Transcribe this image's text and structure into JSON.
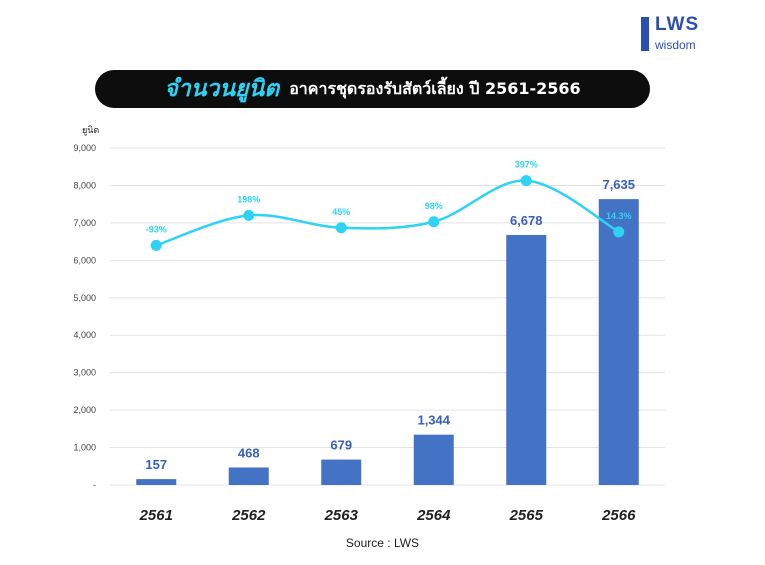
{
  "logo": {
    "main": "LWS",
    "sub": "wisdom"
  },
  "title": {
    "main": "จำนวนยูนิต",
    "sub": "อาคารชุดรองรับสัตว์เลี้ยง ปี 2561-2566"
  },
  "source": "Source : LWS",
  "colors": {
    "bar": "#4472c4",
    "line": "#2dd3f5",
    "bar_label": "#3a5fb8",
    "pct_label": "#2dd3f5"
  },
  "chart_data": {
    "type": "bar",
    "ylabel": "ยูนิต",
    "ylim": [
      0,
      9000
    ],
    "yticks": [
      {
        "v": 0,
        "label": "-"
      },
      {
        "v": 1000,
        "label": "1,000"
      },
      {
        "v": 2000,
        "label": "2,000"
      },
      {
        "v": 3000,
        "label": "3,000"
      },
      {
        "v": 4000,
        "label": "4,000"
      },
      {
        "v": 5000,
        "label": "5,000"
      },
      {
        "v": 6000,
        "label": "6,000"
      },
      {
        "v": 7000,
        "label": "7,000"
      },
      {
        "v": 8000,
        "label": "8,000"
      },
      {
        "v": 9000,
        "label": "9,000"
      }
    ],
    "grid": true,
    "categories": [
      "2561",
      "2562",
      "2563",
      "2564",
      "2565",
      "2566"
    ],
    "values": [
      157,
      468,
      679,
      1344,
      6678,
      7635
    ],
    "value_labels": [
      "157",
      "468",
      "679",
      "1,344",
      "6,678",
      "7,635"
    ],
    "growth_line": {
      "labels": [
        "-93%",
        "198%",
        "45%",
        "98%",
        "397%",
        "14.3%"
      ],
      "points": [
        6400,
        7200,
        6870,
        7030,
        8130,
        6760
      ]
    }
  }
}
